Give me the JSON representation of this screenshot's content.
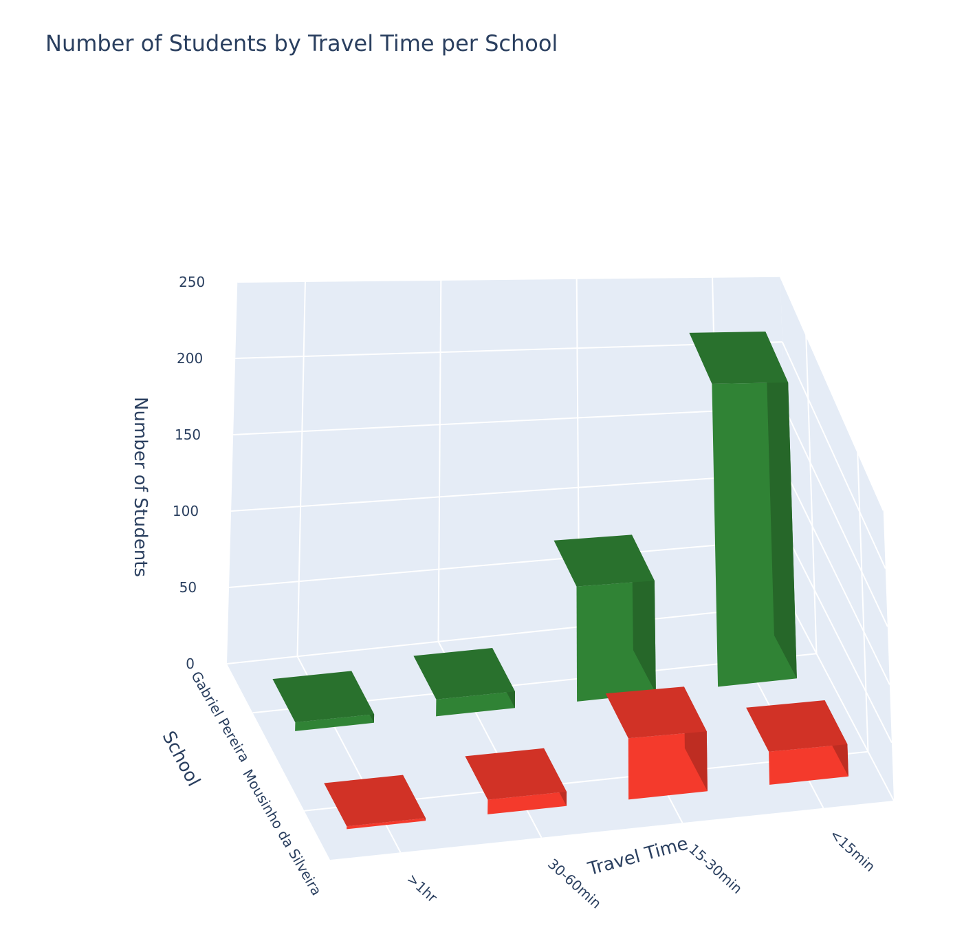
{
  "chart_data": {
    "type": "bar",
    "title": "Number of Students by Travel Time per School",
    "xlabel": "Travel Time",
    "ylabel": "School",
    "zlabel": "Number of Students",
    "categories": [
      ">1hr",
      "30-60min",
      "15-30min",
      "<15min"
    ],
    "schools": [
      "Gabriel Pereira",
      "Mousinho da Silveira"
    ],
    "zlim": [
      0,
      250
    ],
    "zticks": [
      "0",
      "50",
      "100",
      "150",
      "200",
      "250"
    ],
    "series": [
      {
        "name": "Gabriel Pereira",
        "values": [
          6,
          12,
          85,
          233
        ],
        "color": "#2e7d32"
      },
      {
        "name": "Mousinho da Silveira",
        "values": [
          2,
          11,
          48,
          27
        ],
        "color": "#e8372a"
      }
    ],
    "grid": true
  }
}
